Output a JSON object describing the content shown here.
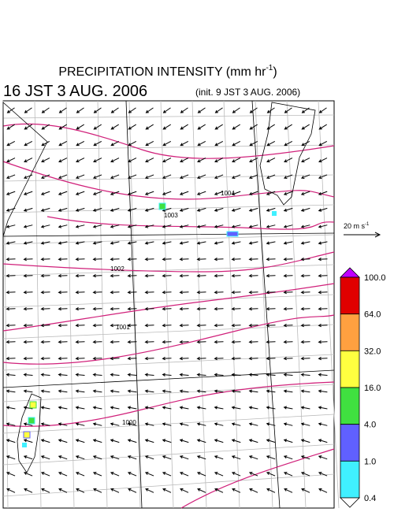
{
  "title": {
    "text": "PRECIPITATION INTENSITY (mm hr",
    "superscript": "-1",
    "close": ")"
  },
  "valid_time": "16 JST 3 AUG. 2006",
  "init_time": "(init. 9 JST 3 AUG. 2006)",
  "vector_legend": {
    "text": "20 m s",
    "superscript": "-1"
  },
  "colorbar": {
    "levels": [
      "100.0",
      "64.0",
      "32.0",
      "16.0",
      "4.0",
      "1.0",
      "0.4"
    ],
    "over_color": "#c000ff",
    "colors": [
      "#e00000",
      "#ffa040",
      "#ffff40",
      "#40e040",
      "#6060ff",
      "#40f0ff"
    ],
    "under_color": "#ffffff"
  },
  "isobar_labels": [
    "1004",
    "1003",
    "1002",
    "1001",
    "1000"
  ]
}
